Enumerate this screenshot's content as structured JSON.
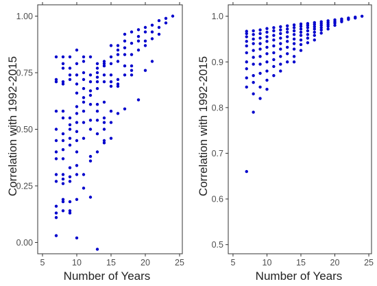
{
  "colors": {
    "points": "#0000cc",
    "panel_border": "#333333",
    "background": "#ffffff"
  },
  "chart_data": [
    {
      "type": "scatter",
      "title": "",
      "xlabel": "Number of Years",
      "ylabel": "Correlation with 1992-2015",
      "xlim": [
        4.3,
        25.4
      ],
      "ylim": [
        -0.05,
        1.05
      ],
      "xticks": [
        5,
        10,
        15,
        20,
        25
      ],
      "xtick_labels": [
        "5",
        "10",
        "15",
        "20",
        "25"
      ],
      "yticks": [
        0,
        0.25,
        0.5,
        0.75,
        1
      ],
      "ytick_labels": [
        "0.00",
        "0.25",
        "0.50",
        "0.75",
        "1.00"
      ],
      "grid": false,
      "legend": "none",
      "points": [
        [
          7,
          0.82
        ],
        [
          7,
          0.72
        ],
        [
          7,
          0.71
        ],
        [
          7,
          0.58
        ],
        [
          7,
          0.5
        ],
        [
          7,
          0.45
        ],
        [
          7,
          0.4
        ],
        [
          7,
          0.37
        ],
        [
          7,
          0.3
        ],
        [
          7,
          0.27
        ],
        [
          7,
          0.16
        ],
        [
          7,
          0.13
        ],
        [
          7,
          0.11
        ],
        [
          7,
          0.03
        ],
        [
          8,
          0.82
        ],
        [
          8,
          0.79
        ],
        [
          8,
          0.77
        ],
        [
          8,
          0.71
        ],
        [
          8,
          0.7
        ],
        [
          8,
          0.58
        ],
        [
          8,
          0.55
        ],
        [
          8,
          0.48
        ],
        [
          8,
          0.45
        ],
        [
          8,
          0.41
        ],
        [
          8,
          0.37
        ],
        [
          8,
          0.3
        ],
        [
          8,
          0.28
        ],
        [
          8,
          0.26
        ],
        [
          8,
          0.19
        ],
        [
          8,
          0.18
        ],
        [
          8,
          0.14
        ],
        [
          9,
          0.82
        ],
        [
          9,
          0.77
        ],
        [
          9,
          0.74
        ],
        [
          9,
          0.72
        ],
        [
          9,
          0.55
        ],
        [
          9,
          0.52
        ],
        [
          9,
          0.5
        ],
        [
          9,
          0.46
        ],
        [
          9,
          0.43
        ],
        [
          9,
          0.33
        ],
        [
          9,
          0.29
        ],
        [
          9,
          0.27
        ],
        [
          9,
          0.18
        ],
        [
          9,
          0.14
        ],
        [
          9,
          0.13
        ],
        [
          10,
          0.85
        ],
        [
          10,
          0.79
        ],
        [
          10,
          0.74
        ],
        [
          10,
          0.7
        ],
        [
          10,
          0.66
        ],
        [
          10,
          0.6
        ],
        [
          10,
          0.57
        ],
        [
          10,
          0.53
        ],
        [
          10,
          0.49
        ],
        [
          10,
          0.45
        ],
        [
          10,
          0.4
        ],
        [
          10,
          0.34
        ],
        [
          10,
          0.3
        ],
        [
          10,
          0.19
        ],
        [
          10,
          0.02
        ],
        [
          11,
          0.82
        ],
        [
          11,
          0.8
        ],
        [
          11,
          0.75
        ],
        [
          11,
          0.72
        ],
        [
          11,
          0.68
        ],
        [
          11,
          0.64
        ],
        [
          11,
          0.62
        ],
        [
          11,
          0.58
        ],
        [
          11,
          0.53
        ],
        [
          11,
          0.46
        ],
        [
          11,
          0.3
        ],
        [
          11,
          0.24
        ],
        [
          12,
          0.82
        ],
        [
          12,
          0.74
        ],
        [
          12,
          0.71
        ],
        [
          12,
          0.67
        ],
        [
          12,
          0.65
        ],
        [
          12,
          0.61
        ],
        [
          12,
          0.54
        ],
        [
          12,
          0.5
        ],
        [
          12,
          0.38
        ],
        [
          12,
          0.36
        ],
        [
          12,
          0.2
        ],
        [
          13,
          0.79
        ],
        [
          13,
          0.77
        ],
        [
          13,
          0.75
        ],
        [
          13,
          0.73
        ],
        [
          13,
          0.71
        ],
        [
          13,
          0.68
        ],
        [
          13,
          0.61
        ],
        [
          13,
          0.58
        ],
        [
          13,
          0.54
        ],
        [
          13,
          0.48
        ],
        [
          13,
          0.4
        ],
        [
          13,
          -0.03
        ],
        [
          14,
          0.8
        ],
        [
          14,
          0.79
        ],
        [
          14,
          0.78
        ],
        [
          14,
          0.74
        ],
        [
          14,
          0.71
        ],
        [
          14,
          0.62
        ],
        [
          14,
          0.55
        ],
        [
          14,
          0.53
        ],
        [
          14,
          0.5
        ],
        [
          14,
          0.45
        ],
        [
          14,
          0.44
        ],
        [
          15,
          0.87
        ],
        [
          15,
          0.82
        ],
        [
          15,
          0.79
        ],
        [
          15,
          0.74
        ],
        [
          15,
          0.71
        ],
        [
          15,
          0.69
        ],
        [
          15,
          0.58
        ],
        [
          15,
          0.53
        ],
        [
          15,
          0.46
        ],
        [
          16,
          0.87
        ],
        [
          16,
          0.85
        ],
        [
          16,
          0.83
        ],
        [
          16,
          0.8
        ],
        [
          16,
          0.72
        ],
        [
          16,
          0.7
        ],
        [
          16,
          0.69
        ],
        [
          16,
          0.57
        ],
        [
          17,
          0.92
        ],
        [
          17,
          0.89
        ],
        [
          17,
          0.86
        ],
        [
          17,
          0.83
        ],
        [
          17,
          0.78
        ],
        [
          17,
          0.74
        ],
        [
          17,
          0.59
        ],
        [
          18,
          0.93
        ],
        [
          18,
          0.88
        ],
        [
          18,
          0.83
        ],
        [
          18,
          0.78
        ],
        [
          18,
          0.76
        ],
        [
          18,
          0.74
        ],
        [
          19,
          0.94
        ],
        [
          19,
          0.91
        ],
        [
          19,
          0.89
        ],
        [
          19,
          0.85
        ],
        [
          19,
          0.63
        ],
        [
          20,
          0.95
        ],
        [
          20,
          0.93
        ],
        [
          20,
          0.89
        ],
        [
          20,
          0.87
        ],
        [
          20,
          0.76
        ],
        [
          21,
          0.96
        ],
        [
          21,
          0.93
        ],
        [
          21,
          0.9
        ],
        [
          21,
          0.8
        ],
        [
          22,
          0.98
        ],
        [
          22,
          0.95
        ],
        [
          22,
          0.92
        ],
        [
          23,
          0.99
        ],
        [
          23,
          0.97
        ],
        [
          24,
          1.0
        ]
      ]
    },
    {
      "type": "scatter",
      "title": "",
      "xlabel": "Number of Years",
      "ylabel": "Correlation with 1992-2015",
      "xlim": [
        4.3,
        25.4
      ],
      "ylim": [
        0.48,
        1.025
      ],
      "xticks": [
        5,
        10,
        15,
        20,
        25
      ],
      "xtick_labels": [
        "5",
        "10",
        "15",
        "20",
        "25"
      ],
      "yticks": [
        0.5,
        0.6,
        0.7,
        0.8,
        0.9,
        1.0
      ],
      "ytick_labels": [
        "0.5",
        "0.6",
        "0.7",
        "0.8",
        "0.9",
        "1.0"
      ],
      "grid": false,
      "legend": "none",
      "points": [
        [
          7,
          0.967
        ],
        [
          7,
          0.962
        ],
        [
          7,
          0.955
        ],
        [
          7,
          0.945
        ],
        [
          7,
          0.935
        ],
        [
          7,
          0.92
        ],
        [
          7,
          0.9
        ],
        [
          7,
          0.885
        ],
        [
          7,
          0.865
        ],
        [
          7,
          0.845
        ],
        [
          7,
          0.66
        ],
        [
          8,
          0.968
        ],
        [
          8,
          0.96
        ],
        [
          8,
          0.95
        ],
        [
          8,
          0.94
        ],
        [
          8,
          0.925
        ],
        [
          8,
          0.91
        ],
        [
          8,
          0.895
        ],
        [
          8,
          0.87
        ],
        [
          8,
          0.855
        ],
        [
          8,
          0.83
        ],
        [
          8,
          0.79
        ],
        [
          9,
          0.97
        ],
        [
          9,
          0.962
        ],
        [
          9,
          0.952
        ],
        [
          9,
          0.94
        ],
        [
          9,
          0.928
        ],
        [
          9,
          0.912
        ],
        [
          9,
          0.895
        ],
        [
          9,
          0.875
        ],
        [
          9,
          0.845
        ],
        [
          9,
          0.82
        ],
        [
          10,
          0.973
        ],
        [
          10,
          0.965
        ],
        [
          10,
          0.955
        ],
        [
          10,
          0.945
        ],
        [
          10,
          0.932
        ],
        [
          10,
          0.918
        ],
        [
          10,
          0.9
        ],
        [
          10,
          0.88
        ],
        [
          10,
          0.86
        ],
        [
          10,
          0.84
        ],
        [
          11,
          0.975
        ],
        [
          11,
          0.968
        ],
        [
          11,
          0.958
        ],
        [
          11,
          0.948
        ],
        [
          11,
          0.935
        ],
        [
          11,
          0.92
        ],
        [
          11,
          0.905
        ],
        [
          11,
          0.89
        ],
        [
          11,
          0.87
        ],
        [
          12,
          0.977
        ],
        [
          12,
          0.97
        ],
        [
          12,
          0.962
        ],
        [
          12,
          0.952
        ],
        [
          12,
          0.94
        ],
        [
          12,
          0.928
        ],
        [
          12,
          0.912
        ],
        [
          12,
          0.895
        ],
        [
          12,
          0.88
        ],
        [
          13,
          0.979
        ],
        [
          13,
          0.972
        ],
        [
          13,
          0.965
        ],
        [
          13,
          0.955
        ],
        [
          13,
          0.945
        ],
        [
          13,
          0.932
        ],
        [
          13,
          0.918
        ],
        [
          13,
          0.9
        ],
        [
          14,
          0.981
        ],
        [
          14,
          0.975
        ],
        [
          14,
          0.968
        ],
        [
          14,
          0.96
        ],
        [
          14,
          0.95
        ],
        [
          14,
          0.94
        ],
        [
          14,
          0.928
        ],
        [
          14,
          0.912
        ],
        [
          14,
          0.9
        ],
        [
          15,
          0.983
        ],
        [
          15,
          0.978
        ],
        [
          15,
          0.972
        ],
        [
          15,
          0.965
        ],
        [
          15,
          0.958
        ],
        [
          15,
          0.948
        ],
        [
          15,
          0.938
        ],
        [
          15,
          0.925
        ],
        [
          16,
          0.984
        ],
        [
          16,
          0.98
        ],
        [
          16,
          0.975
        ],
        [
          16,
          0.968
        ],
        [
          16,
          0.96
        ],
        [
          16,
          0.952
        ],
        [
          16,
          0.942
        ],
        [
          17,
          0.986
        ],
        [
          17,
          0.982
        ],
        [
          17,
          0.977
        ],
        [
          17,
          0.972
        ],
        [
          17,
          0.965
        ],
        [
          17,
          0.958
        ],
        [
          17,
          0.948
        ],
        [
          18,
          0.988
        ],
        [
          18,
          0.984
        ],
        [
          18,
          0.98
        ],
        [
          18,
          0.975
        ],
        [
          18,
          0.97
        ],
        [
          18,
          0.963
        ],
        [
          19,
          0.99
        ],
        [
          19,
          0.986
        ],
        [
          19,
          0.982
        ],
        [
          19,
          0.978
        ],
        [
          19,
          0.972
        ],
        [
          20,
          0.992
        ],
        [
          20,
          0.988
        ],
        [
          20,
          0.985
        ],
        [
          20,
          0.98
        ],
        [
          21,
          0.994
        ],
        [
          21,
          0.991
        ],
        [
          21,
          0.988
        ],
        [
          22,
          0.996
        ],
        [
          22,
          0.993
        ],
        [
          23,
          0.998
        ],
        [
          23,
          0.996
        ],
        [
          24,
          1.0
        ]
      ]
    }
  ]
}
